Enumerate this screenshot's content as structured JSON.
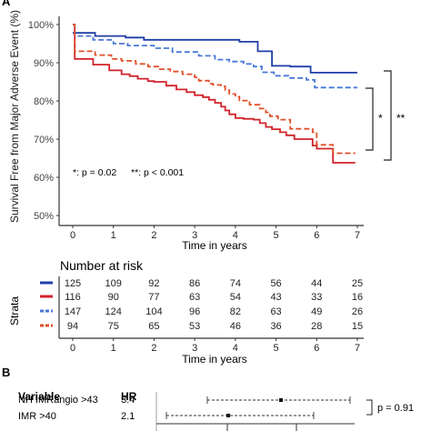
{
  "panel_a": {
    "letter": "A",
    "ylabel": "Survival Free from Major Adverse Event (%)",
    "xlabel": "Time in years",
    "significance_note_1": "*: p = 0.02",
    "significance_note_2": "**: p < 0.001",
    "bracket_labels": [
      "*",
      "**"
    ]
  },
  "risk_table": {
    "title": "Number at risk",
    "strata_label": "Strata",
    "xlabel": "Time in years",
    "times": [
      "0",
      "1",
      "2",
      "3",
      "4",
      "5",
      "6",
      "7"
    ],
    "rows": [
      {
        "color": "#1f3fa8",
        "dashed": false,
        "values": [
          "125",
          "109",
          "92",
          "86",
          "74",
          "56",
          "44",
          "25"
        ]
      },
      {
        "color": "#d2232a",
        "dashed": false,
        "values": [
          "116",
          "90",
          "77",
          "63",
          "54",
          "43",
          "33",
          "16"
        ]
      },
      {
        "color": "#4a78d6",
        "dashed": true,
        "values": [
          "147",
          "124",
          "104",
          "96",
          "82",
          "63",
          "49",
          "26"
        ]
      },
      {
        "color": "#e0502a",
        "dashed": true,
        "values": [
          "94",
          "75",
          "65",
          "53",
          "46",
          "36",
          "28",
          "15"
        ]
      }
    ]
  },
  "panel_b": {
    "letter": "B",
    "col_variable": "Variable",
    "col_hr": "HR",
    "rows": [
      {
        "variable": "NH IMRangio >43",
        "hr": "3.4"
      },
      {
        "variable": "IMR >40",
        "hr": "2.1"
      }
    ],
    "p_label": "p = 0.91"
  },
  "chart_data": [
    {
      "type": "line",
      "subtype": "kaplan-meier",
      "xlabel": "Time in years",
      "ylabel": "Survival Free from Major Adverse Event (%)",
      "xlim": [
        0,
        7
      ],
      "ylim": [
        50,
        100
      ],
      "x_ticks": [
        0,
        1,
        2,
        3,
        4,
        5,
        6,
        7
      ],
      "y_ticks": [
        "50%",
        "60%",
        "70%",
        "80%",
        "90%",
        "100%"
      ],
      "grid": false,
      "series": [
        {
          "color": "#1f3fa8",
          "dashed": false,
          "x": [
            0,
            0.55,
            1.3,
            1.75,
            4.1,
            4.55,
            4.9,
            5.35,
            5.85,
            7.0
          ],
          "y": [
            97.8,
            97.0,
            96.6,
            96.0,
            95.5,
            93.0,
            89.2,
            89.0,
            87.4,
            87.4
          ]
        },
        {
          "color": "#d2232a",
          "dashed": false,
          "x": [
            0,
            0.05,
            0.5,
            0.9,
            1.2,
            1.4,
            1.6,
            1.85,
            2.0,
            2.3,
            2.55,
            2.8,
            3.0,
            3.2,
            3.35,
            3.5,
            3.65,
            3.75,
            3.85,
            4.0,
            4.2,
            4.45,
            4.6,
            4.75,
            4.9,
            5.1,
            5.25,
            5.45,
            5.9,
            6.0,
            6.4,
            6.95
          ],
          "y": [
            100,
            91.0,
            89.5,
            88.0,
            87.0,
            86.5,
            85.8,
            85.2,
            85.0,
            84.0,
            83.0,
            82.3,
            81.5,
            81.0,
            80.3,
            79.5,
            78.5,
            77.5,
            76.5,
            75.5,
            75.3,
            75.1,
            74.2,
            73.2,
            72.6,
            71.8,
            71.0,
            70.0,
            68.3,
            67.5,
            63.8,
            63.8
          ]
        },
        {
          "color": "#4a78d6",
          "dashed": true,
          "x": [
            0,
            0.05,
            0.5,
            1.0,
            1.35,
            2.0,
            2.45,
            3.1,
            3.5,
            3.85,
            4.2,
            4.45,
            4.65,
            4.95,
            5.3,
            5.75,
            5.95,
            7.0
          ],
          "y": [
            100,
            97.0,
            96.0,
            95.0,
            94.5,
            93.8,
            92.8,
            91.8,
            90.8,
            90.3,
            89.7,
            89.0,
            87.5,
            86.6,
            86.0,
            85.5,
            83.5,
            83.5
          ]
        },
        {
          "color": "#e0502a",
          "dashed": true,
          "x": [
            0,
            0.05,
            0.55,
            0.95,
            1.2,
            1.55,
            1.85,
            2.1,
            2.4,
            2.7,
            3.0,
            3.1,
            3.35,
            3.45,
            3.65,
            3.75,
            3.85,
            4.0,
            4.1,
            4.35,
            4.6,
            4.75,
            4.85,
            5.05,
            5.35,
            5.9,
            6.0,
            6.4,
            6.95
          ],
          "y": [
            100,
            93.0,
            92.0,
            91.0,
            90.5,
            89.7,
            89.0,
            88.3,
            87.7,
            87.0,
            86.2,
            85.3,
            84.5,
            84.2,
            83.8,
            82.8,
            81.8,
            81.1,
            80.1,
            79.0,
            78.0,
            77.0,
            76.0,
            75.1,
            72.7,
            71.8,
            68.5,
            66.3,
            66.3
          ]
        }
      ]
    }
  ]
}
